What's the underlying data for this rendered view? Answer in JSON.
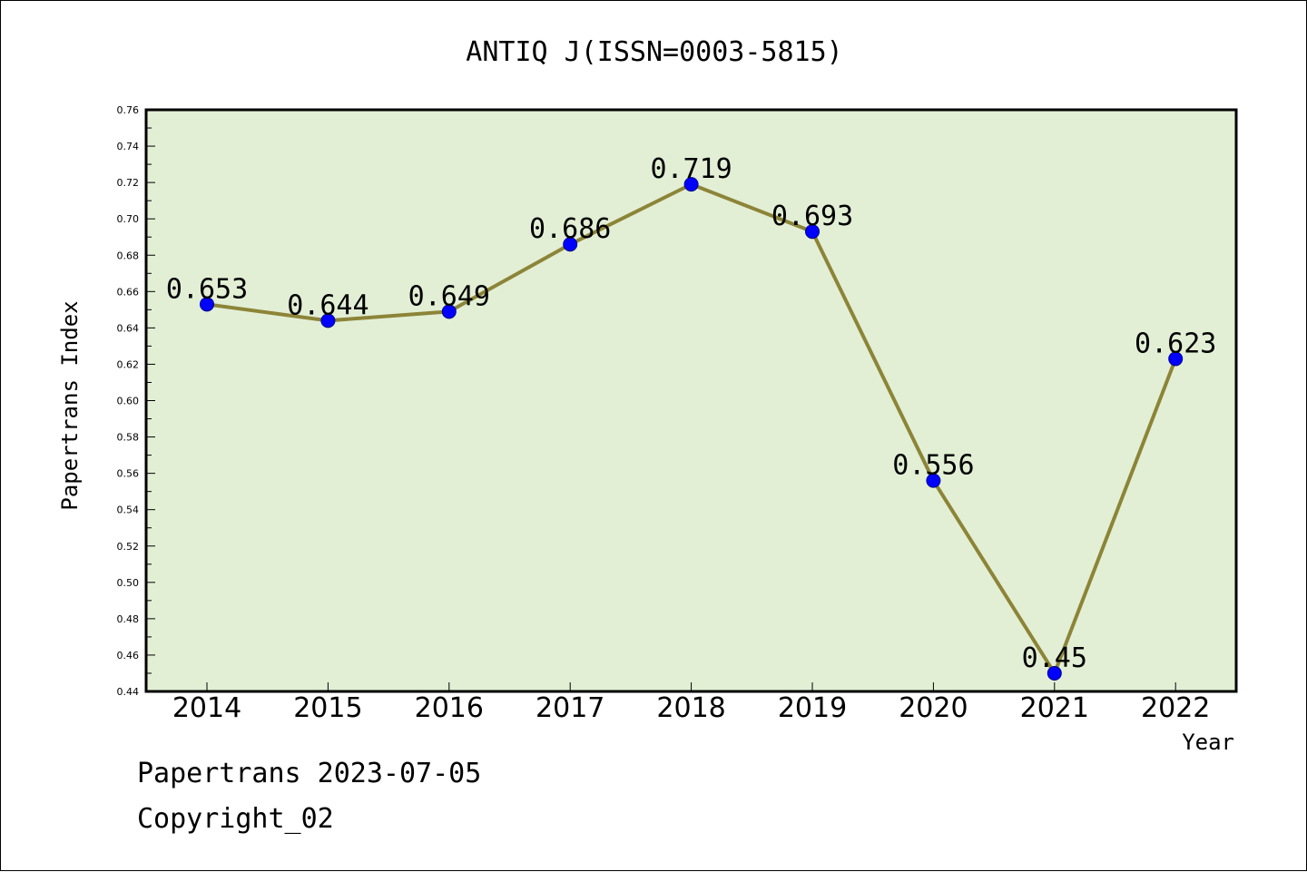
{
  "chart_data": {
    "type": "line",
    "title": "ANTIQ J(ISSN=0003-5815)",
    "xlabel": "Year",
    "ylabel": "Papertrans Index",
    "categories": [
      "2014",
      "2015",
      "2016",
      "2017",
      "2018",
      "2019",
      "2020",
      "2021",
      "2022"
    ],
    "values": [
      0.653,
      0.644,
      0.649,
      0.686,
      0.719,
      0.693,
      0.556,
      0.45,
      0.623
    ],
    "labels": [
      "0.653",
      "0.644",
      "0.649",
      "0.686",
      "0.719",
      "0.693",
      "0.556",
      "0.45",
      "0.623"
    ],
    "ylim": [
      0.44,
      0.76
    ],
    "yticks": [
      "0.44",
      "0.46",
      "0.48",
      "0.50",
      "0.52",
      "0.54",
      "0.56",
      "0.58",
      "0.60",
      "0.62",
      "0.64",
      "0.66",
      "0.68",
      "0.70",
      "0.72",
      "0.74",
      "0.76"
    ],
    "grid": false,
    "colors": {
      "plot_background": "#e2efd5",
      "line": "#8c8437",
      "marker": "#0000ff"
    }
  },
  "footer": {
    "date_line": "Papertrans 2023-07-05",
    "copyright": "Copyright_02"
  }
}
